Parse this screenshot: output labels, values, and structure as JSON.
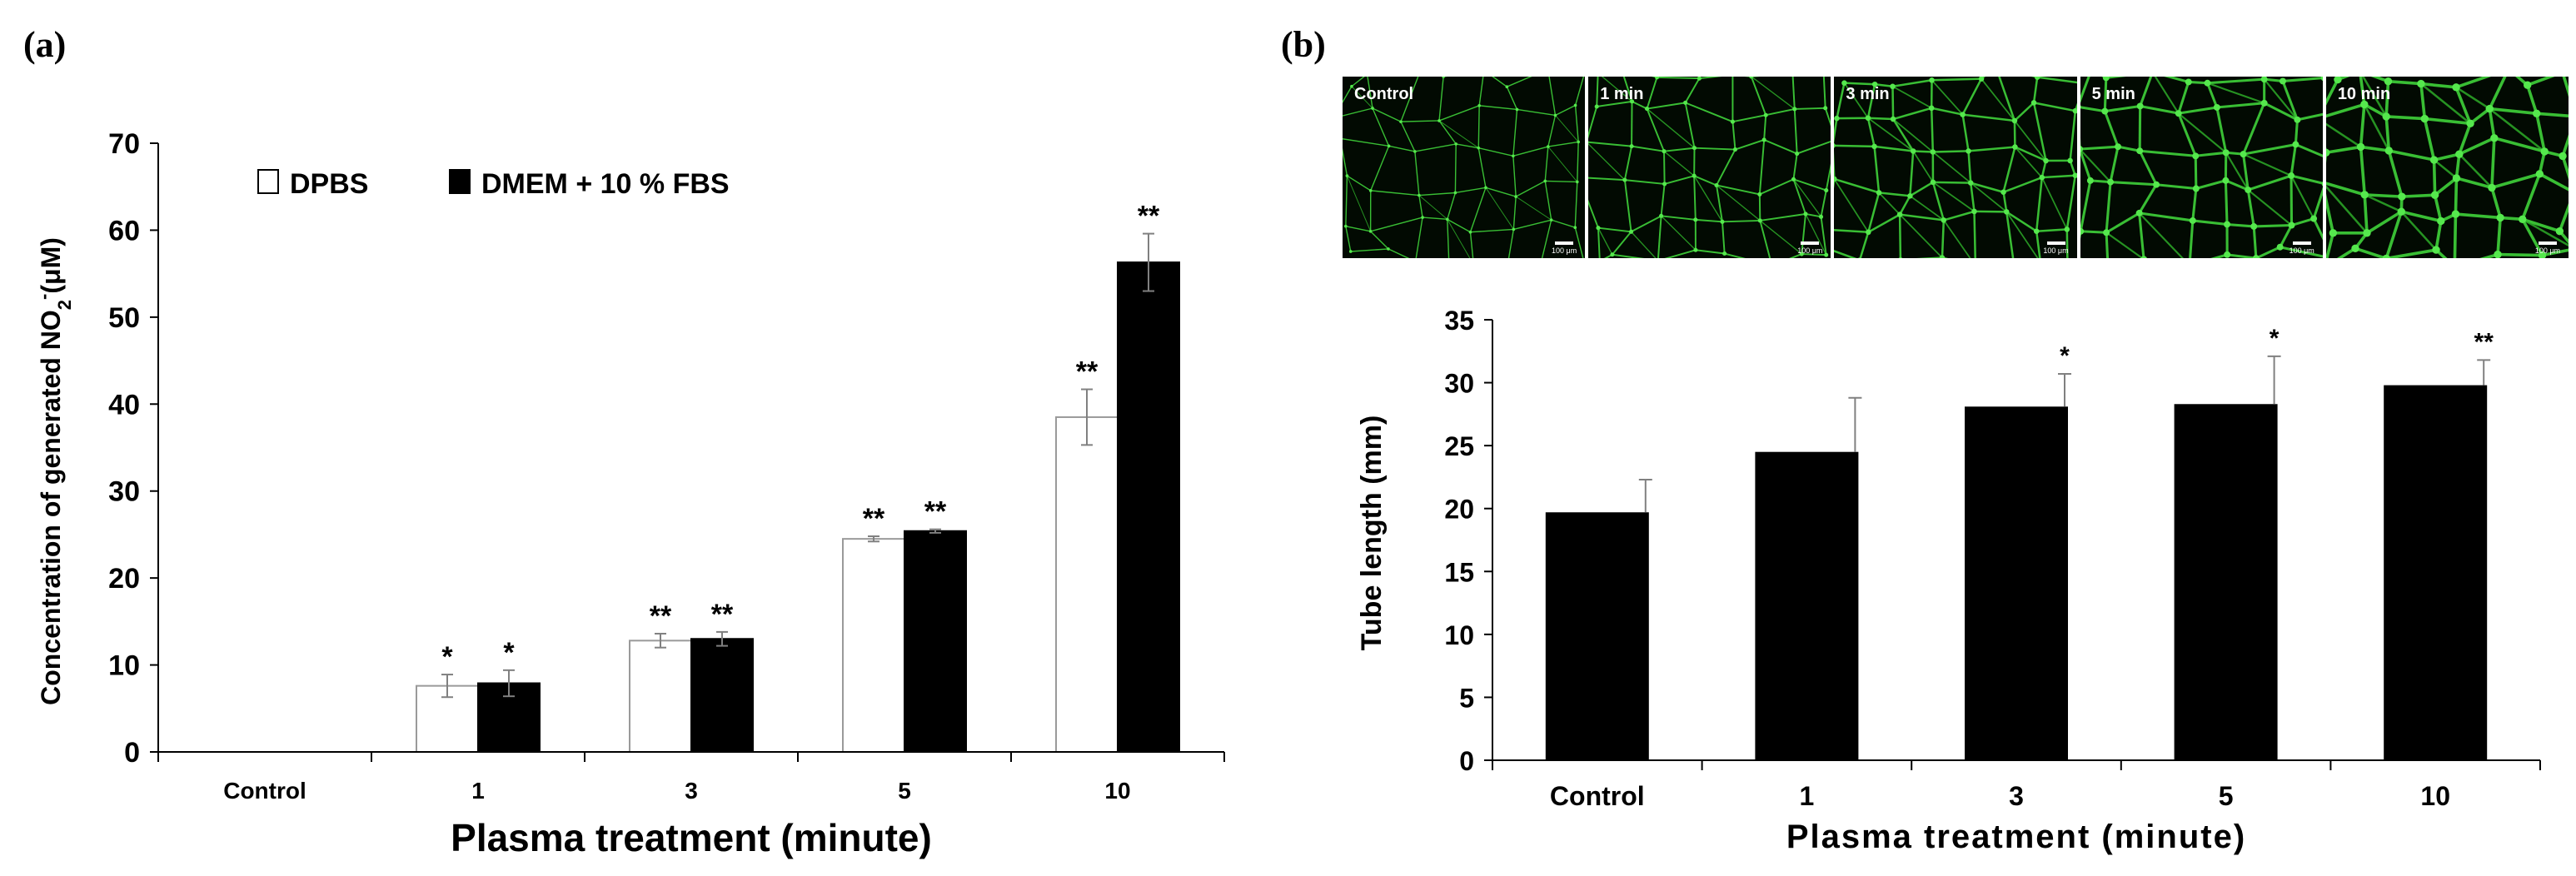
{
  "panel_a": {
    "label": "(a)",
    "legend": {
      "open": "DPBS",
      "filled": "DMEM + 10 % FBS"
    },
    "ylabel_main": "Concentration of generated NO",
    "ylabel_sub": "2",
    "ylabel_sup": "-",
    "ylabel_unit": "(μM)"
  },
  "panel_b": {
    "label": "(b)",
    "images": [
      {
        "label": "Control",
        "scale": "100 μm"
      },
      {
        "label": "1 min",
        "scale": "100 μm"
      },
      {
        "label": "3 min",
        "scale": "100 μm"
      },
      {
        "label": "5 min",
        "scale": "100 μm"
      },
      {
        "label": "10 min",
        "scale": "100 μm"
      }
    ]
  },
  "colors": {
    "bar_filled": "#000000",
    "bar_open": "#ffffff",
    "error_bar": "#808080",
    "micrograph_green": "#3fd23a"
  },
  "chart_data": [
    {
      "type": "bar",
      "title": "",
      "xlabel": "Plasma treatment (minute)",
      "ylabel": "Concentration of generated NO2- (μM)",
      "categories": [
        "Control",
        "1",
        "3",
        "5",
        "10"
      ],
      "ylim": [
        0,
        70
      ],
      "yticks": [
        0,
        10,
        20,
        30,
        40,
        50,
        60,
        70
      ],
      "legend_position": "top-left",
      "series": [
        {
          "name": "DPBS",
          "values": [
            0,
            7.6,
            12.8,
            24.5,
            38.5
          ],
          "errors": [
            0,
            1.3,
            0.8,
            0.3,
            3.2
          ],
          "sig": [
            "",
            "*",
            "**",
            "**",
            "**"
          ],
          "fill": "#ffffff"
        },
        {
          "name": "DMEM + 10 % FBS",
          "values": [
            0,
            7.9,
            13.0,
            25.4,
            56.3
          ],
          "errors": [
            0,
            1.5,
            0.8,
            0.2,
            3.3
          ],
          "sig": [
            "",
            "*",
            "**",
            "**",
            "**"
          ],
          "fill": "#000000"
        }
      ]
    },
    {
      "type": "bar",
      "title": "",
      "xlabel": "Plasma treatment (minute)",
      "ylabel": "Tube length (mm)",
      "categories": [
        "Control",
        "1",
        "3",
        "5",
        "10"
      ],
      "ylim": [
        0,
        35
      ],
      "yticks": [
        0,
        5,
        10,
        15,
        20,
        25,
        30,
        35
      ],
      "series": [
        {
          "name": "",
          "values": [
            19.7,
            24.5,
            28.1,
            28.3,
            29.8
          ],
          "errors": [
            2.6,
            4.3,
            2.6,
            3.8,
            2.0
          ],
          "sig": [
            "",
            "",
            "*",
            "*",
            "**"
          ],
          "fill": "#000000"
        }
      ]
    }
  ]
}
